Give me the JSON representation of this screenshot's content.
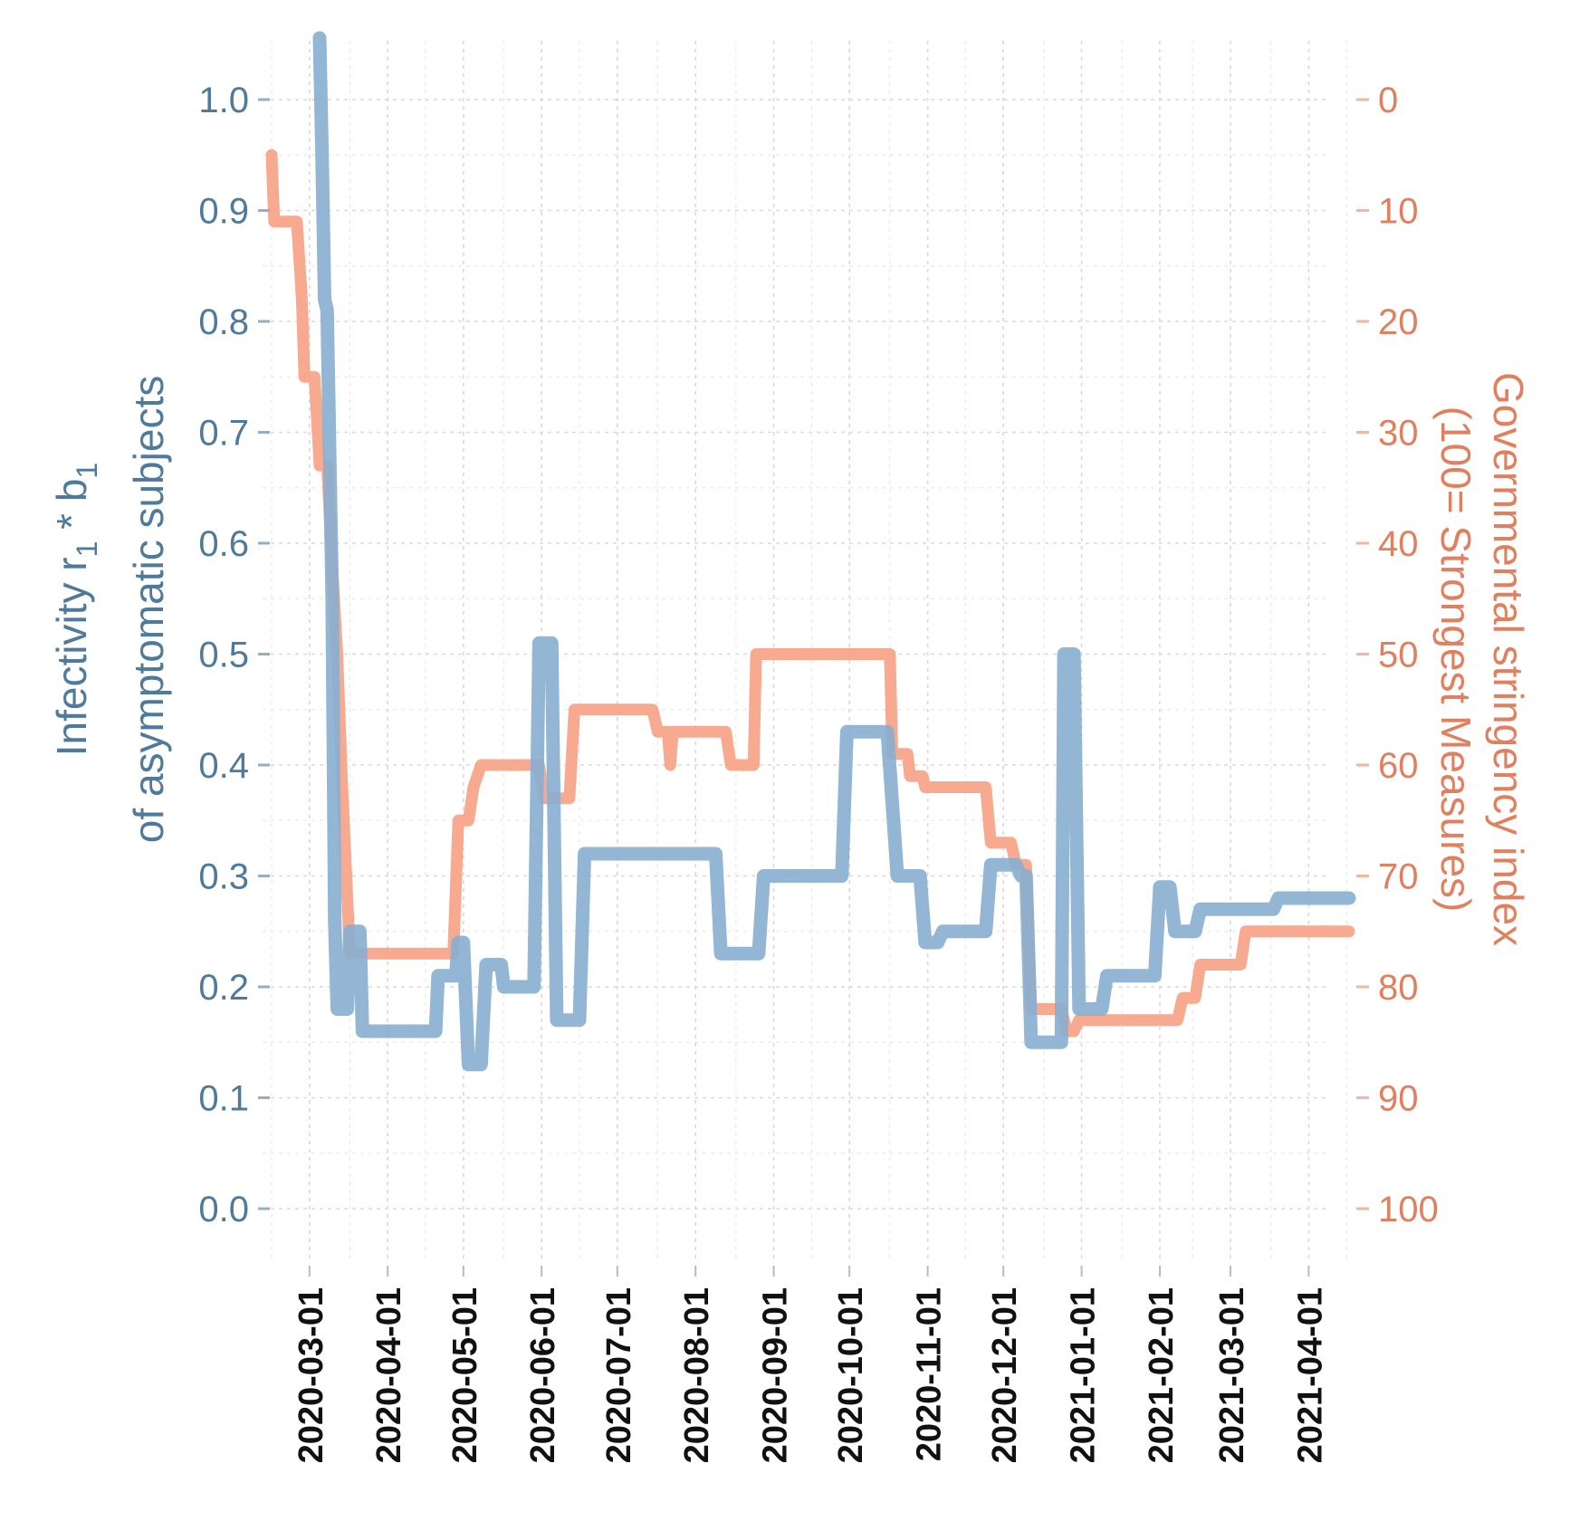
{
  "chart_data": {
    "type": "line",
    "title": "",
    "xlabel": "",
    "ylabel_left": {
      "line1": "Infectivity  r",
      "sub1": "1",
      "mid": " * b",
      "sub2": "1",
      "line2": "of asymptomatic subjects"
    },
    "ylabel_right": {
      "line1": "Governmental stringency index",
      "line2": "(100= Strongest Measures)"
    },
    "x_ticks": [
      "2020-03-01",
      "2020-04-01",
      "2020-05-01",
      "2020-06-01",
      "2020-07-01",
      "2020-08-01",
      "2020-09-01",
      "2020-10-01",
      "2020-11-01",
      "2020-12-01",
      "2021-01-01",
      "2021-02-01",
      "2021-03-01",
      "2021-04-01"
    ],
    "x_range": [
      "2020-02-15",
      "2021-04-17"
    ],
    "y_left": {
      "ylim": [
        0.0,
        1.0
      ],
      "ticks": [
        "0.0",
        "0.1",
        "0.2",
        "0.3",
        "0.4",
        "0.5",
        "0.6",
        "0.7",
        "0.8",
        "0.9",
        "1.0"
      ]
    },
    "y_right": {
      "ylim": [
        100,
        0
      ],
      "inverted": true,
      "ticks": [
        "100",
        "90",
        "80",
        "70",
        "60",
        "50",
        "40",
        "30",
        "20",
        "10",
        "0"
      ]
    },
    "grid": true,
    "colors": {
      "infectivity": "#87aed0",
      "stringency": "#f7a387",
      "left_axis_text": "#4f7a9c",
      "right_axis_text": "#e0805f"
    },
    "series": [
      {
        "name": "Infectivity r1*b1 of asymptomatic subjects",
        "axis": "left",
        "points": [
          [
            "2020-03-05",
            1.06
          ],
          [
            "2020-03-06",
            0.95
          ],
          [
            "2020-03-07",
            0.82
          ],
          [
            "2020-03-08",
            0.81
          ],
          [
            "2020-03-10",
            0.55
          ],
          [
            "2020-03-11",
            0.26
          ],
          [
            "2020-03-12",
            0.18
          ],
          [
            "2020-03-16",
            0.18
          ],
          [
            "2020-03-17",
            0.25
          ],
          [
            "2020-03-21",
            0.25
          ],
          [
            "2020-03-22",
            0.16
          ],
          [
            "2020-04-20",
            0.16
          ],
          [
            "2020-04-21",
            0.21
          ],
          [
            "2020-04-28",
            0.21
          ],
          [
            "2020-04-29",
            0.24
          ],
          [
            "2020-05-01",
            0.24
          ],
          [
            "2020-05-03",
            0.13
          ],
          [
            "2020-05-08",
            0.13
          ],
          [
            "2020-05-10",
            0.22
          ],
          [
            "2020-05-16",
            0.22
          ],
          [
            "2020-05-17",
            0.2
          ],
          [
            "2020-05-29",
            0.2
          ],
          [
            "2020-05-31",
            0.51
          ],
          [
            "2020-06-05",
            0.51
          ],
          [
            "2020-06-07",
            0.17
          ],
          [
            "2020-06-16",
            0.17
          ],
          [
            "2020-06-18",
            0.32
          ],
          [
            "2020-08-09",
            0.32
          ],
          [
            "2020-08-11",
            0.23
          ],
          [
            "2020-08-26",
            0.23
          ],
          [
            "2020-08-28",
            0.3
          ],
          [
            "2020-09-28",
            0.3
          ],
          [
            "2020-09-30",
            0.43
          ],
          [
            "2020-10-16",
            0.43
          ],
          [
            "2020-10-20",
            0.3
          ],
          [
            "2020-10-29",
            0.3
          ],
          [
            "2020-10-31",
            0.24
          ],
          [
            "2020-11-05",
            0.24
          ],
          [
            "2020-11-07",
            0.25
          ],
          [
            "2020-11-24",
            0.25
          ],
          [
            "2020-11-26",
            0.31
          ],
          [
            "2020-12-06",
            0.31
          ],
          [
            "2020-12-08",
            0.3
          ],
          [
            "2020-12-10",
            0.3
          ],
          [
            "2020-12-12",
            0.15
          ],
          [
            "2020-12-24",
            0.15
          ],
          [
            "2020-12-25",
            0.5
          ],
          [
            "2020-12-29",
            0.5
          ],
          [
            "2020-12-31",
            0.18
          ],
          [
            "2021-01-09",
            0.18
          ],
          [
            "2021-01-11",
            0.21
          ],
          [
            "2021-01-30",
            0.21
          ],
          [
            "2021-02-01",
            0.29
          ],
          [
            "2021-02-05",
            0.29
          ],
          [
            "2021-02-07",
            0.25
          ],
          [
            "2021-02-15",
            0.25
          ],
          [
            "2021-02-17",
            0.27
          ],
          [
            "2021-03-18",
            0.27
          ],
          [
            "2021-03-20",
            0.28
          ],
          [
            "2021-04-17",
            0.28
          ]
        ]
      },
      {
        "name": "Governmental stringency index",
        "axis": "right",
        "points": [
          [
            "2020-02-15",
            5
          ],
          [
            "2020-02-16",
            11
          ],
          [
            "2020-02-25",
            11
          ],
          [
            "2020-02-27",
            18
          ],
          [
            "2020-02-28",
            25
          ],
          [
            "2020-03-03",
            25
          ],
          [
            "2020-03-05",
            33
          ],
          [
            "2020-03-08",
            33
          ],
          [
            "2020-03-10",
            42
          ],
          [
            "2020-03-12",
            50
          ],
          [
            "2020-03-14",
            62
          ],
          [
            "2020-03-17",
            77
          ],
          [
            "2020-04-27",
            77
          ],
          [
            "2020-04-29",
            65
          ],
          [
            "2020-05-03",
            65
          ],
          [
            "2020-05-05",
            62
          ],
          [
            "2020-05-08",
            60
          ],
          [
            "2020-05-31",
            60
          ],
          [
            "2020-06-02",
            63
          ],
          [
            "2020-06-12",
            63
          ],
          [
            "2020-06-14",
            55
          ],
          [
            "2020-07-15",
            55
          ],
          [
            "2020-07-17",
            57
          ],
          [
            "2020-07-21",
            57
          ],
          [
            "2020-07-22",
            60
          ],
          [
            "2020-07-23",
            57
          ],
          [
            "2020-08-13",
            57
          ],
          [
            "2020-08-15",
            60
          ],
          [
            "2020-08-24",
            60
          ],
          [
            "2020-08-25",
            50
          ],
          [
            "2020-10-17",
            50
          ],
          [
            "2020-10-18",
            59
          ],
          [
            "2020-10-24",
            59
          ],
          [
            "2020-10-25",
            61
          ],
          [
            "2020-10-30",
            61
          ],
          [
            "2020-10-31",
            62
          ],
          [
            "2020-11-24",
            62
          ],
          [
            "2020-11-26",
            67
          ],
          [
            "2020-12-04",
            67
          ],
          [
            "2020-12-06",
            69
          ],
          [
            "2020-12-10",
            69
          ],
          [
            "2020-12-12",
            82
          ],
          [
            "2020-12-24",
            82
          ],
          [
            "2020-12-26",
            84
          ],
          [
            "2020-12-29",
            84
          ],
          [
            "2020-12-31",
            83
          ],
          [
            "2021-02-08",
            83
          ],
          [
            "2021-02-10",
            81
          ],
          [
            "2021-02-15",
            81
          ],
          [
            "2021-02-17",
            78
          ],
          [
            "2021-03-05",
            78
          ],
          [
            "2021-03-07",
            75
          ],
          [
            "2021-04-17",
            75
          ]
        ]
      }
    ]
  }
}
